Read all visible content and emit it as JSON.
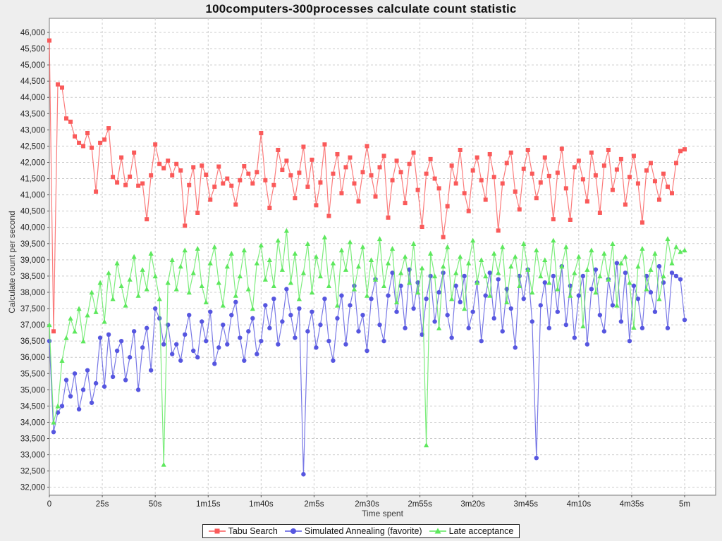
{
  "chart_data": {
    "type": "line",
    "title": "100computers-300processes calculate count statistic",
    "xlabel": "Time spent",
    "ylabel": "Calculate count per second",
    "grid": "dashed",
    "legend_position": "bottom-center",
    "ylim": [
      32000,
      46000
    ],
    "y_tick_step": 500,
    "x_range_seconds": [
      0,
      300
    ],
    "x_ticks": [
      {
        "t": 0,
        "label": "0"
      },
      {
        "t": 25,
        "label": "25s"
      },
      {
        "t": 50,
        "label": "50s"
      },
      {
        "t": 75,
        "label": "1m15s"
      },
      {
        "t": 100,
        "label": "1m40s"
      },
      {
        "t": 125,
        "label": "2m5s"
      },
      {
        "t": 150,
        "label": "2m30s"
      },
      {
        "t": 175,
        "label": "2m55s"
      },
      {
        "t": 200,
        "label": "3m20s"
      },
      {
        "t": 225,
        "label": "3m45s"
      },
      {
        "t": 250,
        "label": "4m10s"
      },
      {
        "t": 275,
        "label": "4m35s"
      },
      {
        "t": 300,
        "label": "5m"
      }
    ],
    "x_start": 0,
    "x_step": 2,
    "series": [
      {
        "name": "Tabu Search",
        "color": "#FA5A5A",
        "marker": "square",
        "values": [
          45750,
          36800,
          44400,
          44300,
          43350,
          43250,
          42800,
          42600,
          42500,
          42900,
          42450,
          41100,
          42600,
          42700,
          43050,
          41550,
          41380,
          42150,
          41300,
          41560,
          42300,
          41280,
          41350,
          40250,
          41600,
          42550,
          41950,
          41820,
          42050,
          41600,
          41950,
          41750,
          40050,
          41300,
          41850,
          40450,
          41900,
          41620,
          40850,
          41250,
          41870,
          41350,
          41500,
          41280,
          40700,
          41450,
          41880,
          41650,
          41350,
          41700,
          42900,
          41450,
          40600,
          41300,
          42380,
          41770,
          42050,
          41600,
          40900,
          41680,
          42480,
          41250,
          42080,
          40680,
          41380,
          42550,
          40350,
          41650,
          42250,
          41050,
          41850,
          42150,
          41350,
          40800,
          41700,
          42500,
          41600,
          40950,
          41850,
          42200,
          40300,
          41450,
          42050,
          41700,
          40750,
          41950,
          42300,
          41150,
          40015,
          41650,
          42100,
          41500,
          41200,
          39700,
          40650,
          41900,
          41350,
          42380,
          41050,
          40500,
          41750,
          42150,
          41450,
          40850,
          42250,
          41550,
          39900,
          41350,
          41980,
          42300,
          41100,
          40550,
          41800,
          42380,
          41650,
          40900,
          41380,
          42150,
          41580,
          40250,
          41680,
          42420,
          41200,
          40233,
          41850,
          42050,
          41480,
          40800,
          42300,
          41600,
          40450,
          41900,
          42380,
          41150,
          41780,
          42100,
          40700,
          41550,
          42200,
          41350,
          40150,
          41750,
          41980,
          41420,
          40850,
          41650,
          41250,
          41050,
          41980,
          42350,
          42400
        ]
      },
      {
        "name": "Simulated Annealing (favorite)",
        "color": "#5656E0",
        "marker": "circle",
        "values": [
          36500,
          33700,
          34300,
          34500,
          35300,
          34800,
          35500,
          34400,
          35000,
          35600,
          34600,
          35200,
          36600,
          35100,
          36700,
          35400,
          36200,
          36500,
          35300,
          36000,
          36800,
          35000,
          36300,
          36900,
          35600,
          37500,
          37200,
          36400,
          37000,
          36100,
          36400,
          35900,
          36700,
          37300,
          36200,
          36000,
          37100,
          36500,
          37400,
          35800,
          36300,
          37000,
          36400,
          37300,
          37700,
          36600,
          35900,
          36800,
          37200,
          36100,
          36500,
          37600,
          36900,
          37800,
          36400,
          37100,
          38100,
          37300,
          36600,
          37500,
          32400,
          36800,
          37400,
          36300,
          37000,
          37800,
          36500,
          35900,
          37200,
          37900,
          36400,
          37600,
          38200,
          36800,
          37300,
          36200,
          37800,
          38400,
          37000,
          36500,
          37900,
          38600,
          37400,
          38200,
          36900,
          38700,
          37500,
          38300,
          36700,
          37800,
          38500,
          37100,
          38000,
          38600,
          37300,
          36600,
          38200,
          37700,
          38500,
          36900,
          37400,
          38300,
          36500,
          37900,
          38600,
          37200,
          38400,
          36800,
          38100,
          37500,
          36300,
          38500,
          37800,
          38700,
          37100,
          32900,
          37600,
          38300,
          36900,
          38500,
          37400,
          38800,
          37000,
          38200,
          36600,
          37900,
          38500,
          36400,
          38100,
          38700,
          37300,
          36800,
          38400,
          37600,
          38900,
          37100,
          38600,
          36500,
          38200,
          37800,
          36900,
          38500,
          38000,
          37400,
          38800,
          38300,
          36900,
          38600,
          38500,
          38400,
          37150
        ]
      },
      {
        "name": "Late acceptance",
        "color": "#5DE85D",
        "marker": "triangle",
        "values": [
          37000,
          34000,
          34500,
          35900,
          36600,
          37200,
          36800,
          37500,
          36500,
          37300,
          38000,
          37400,
          38300,
          37100,
          38600,
          37800,
          38900,
          38200,
          37600,
          38400,
          39100,
          37900,
          38700,
          38100,
          39200,
          38500,
          37800,
          32700,
          38300,
          39000,
          38100,
          38800,
          39300,
          38000,
          38600,
          39350,
          38200,
          37700,
          38900,
          39400,
          38300,
          37600,
          38800,
          39200,
          37900,
          38500,
          39300,
          38100,
          37500,
          38900,
          39450,
          38400,
          39000,
          38200,
          39600,
          38700,
          39900,
          38300,
          39200,
          37800,
          38600,
          39500,
          38000,
          39100,
          38500,
          39700,
          38200,
          38900,
          37600,
          39300,
          38700,
          39550,
          38100,
          38800,
          39400,
          37900,
          39000,
          38400,
          39650,
          38200,
          38900,
          39350,
          37700,
          38600,
          39100,
          38300,
          39500,
          38000,
          38750,
          33300,
          39200,
          38500,
          36900,
          38800,
          39400,
          37800,
          38600,
          39100,
          37500,
          38900,
          39600,
          38300,
          39000,
          38500,
          37900,
          39200,
          38600,
          39400,
          37700,
          38800,
          39100,
          38200,
          39500,
          38700,
          38000,
          39300,
          38500,
          39000,
          38300,
          39600,
          38100,
          38800,
          39400,
          37900,
          38600,
          39100,
          36960,
          38700,
          39300,
          38000,
          38500,
          39200,
          38400,
          39500,
          37600,
          38900,
          39100,
          38300,
          36920,
          38800,
          39350,
          38100,
          38700,
          39200,
          37800,
          38500,
          39650,
          38900,
          39400,
          39250,
          39300
        ]
      }
    ]
  }
}
